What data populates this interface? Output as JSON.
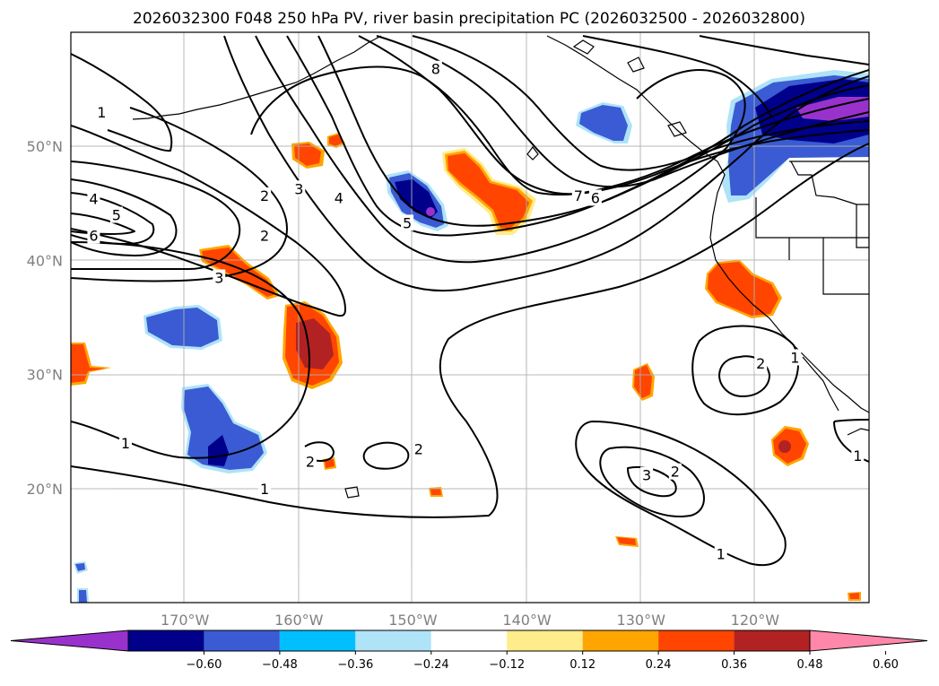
{
  "title": "2026032300 F048 250 hPa PV, river basin precipitation PC (2026032500 - 2026032800)",
  "map": {
    "lon_range": [
      -180,
      -110
    ],
    "lat_range": [
      10,
      60
    ],
    "lon_ticks": [
      {
        "value": -170,
        "label": "170°W"
      },
      {
        "value": -160,
        "label": "160°W"
      },
      {
        "value": -150,
        "label": "150°W"
      },
      {
        "value": -140,
        "label": "140°W"
      },
      {
        "value": -130,
        "label": "130°W"
      },
      {
        "value": -120,
        "label": "120°W"
      }
    ],
    "lat_ticks": [
      {
        "value": 20,
        "label": "20°N"
      },
      {
        "value": 30,
        "label": "30°N"
      },
      {
        "value": 40,
        "label": "40°N"
      },
      {
        "value": 50,
        "label": "50°N"
      }
    ],
    "grid": true,
    "pv_contour_color": "#000000",
    "coastline_color": "#000000"
  },
  "colorbar": {
    "extend": "both",
    "colors": [
      "#9932cc",
      "#00008b",
      "#3a5bd3",
      "#00bfff",
      "#aee3f8",
      "#ffffff",
      "#ffec8b",
      "#ffa500",
      "#ff4500",
      "#b22222",
      "#ff88aa"
    ],
    "ticks": [
      "−0.60",
      "−0.48",
      "−0.36",
      "−0.24",
      "−0.12",
      "0.12",
      "0.24",
      "0.36",
      "0.48",
      "0.60"
    ]
  },
  "pv_labels": [
    {
      "text": "1",
      "lon": -177.3,
      "lat": 53.0
    },
    {
      "text": "8",
      "lon": -148.0,
      "lat": 56.8
    },
    {
      "text": "4",
      "lon": -178.0,
      "lat": 45.4
    },
    {
      "text": "5",
      "lon": -176.0,
      "lat": 44.0
    },
    {
      "text": "6",
      "lon": -178.0,
      "lat": 42.2
    },
    {
      "text": "2",
      "lon": -163.0,
      "lat": 45.7
    },
    {
      "text": "3",
      "lon": -160.0,
      "lat": 46.3
    },
    {
      "text": "4",
      "lon": -156.5,
      "lat": 45.5
    },
    {
      "text": "5",
      "lon": -150.5,
      "lat": 43.3
    },
    {
      "text": "2",
      "lon": -163.0,
      "lat": 42.2
    },
    {
      "text": "3",
      "lon": -167.0,
      "lat": 38.5
    },
    {
      "text": "7",
      "lon": -135.5,
      "lat": 45.7
    },
    {
      "text": "6",
      "lon": -134.0,
      "lat": 45.5
    },
    {
      "text": "2",
      "lon": -119.5,
      "lat": 31.0
    },
    {
      "text": "1",
      "lon": -116.5,
      "lat": 31.5
    },
    {
      "text": "1",
      "lon": -175.2,
      "lat": 24.0
    },
    {
      "text": "1",
      "lon": -163.0,
      "lat": 20.0
    },
    {
      "text": "2",
      "lon": -159.0,
      "lat": 22.4
    },
    {
      "text": "2",
      "lon": -149.5,
      "lat": 23.5
    },
    {
      "text": "3",
      "lon": -129.5,
      "lat": 21.2
    },
    {
      "text": "2",
      "lon": -127.0,
      "lat": 21.5
    },
    {
      "text": "1",
      "lon": -123.0,
      "lat": 14.3
    },
    {
      "text": "1",
      "lon": -111.0,
      "lat": 22.9
    }
  ]
}
